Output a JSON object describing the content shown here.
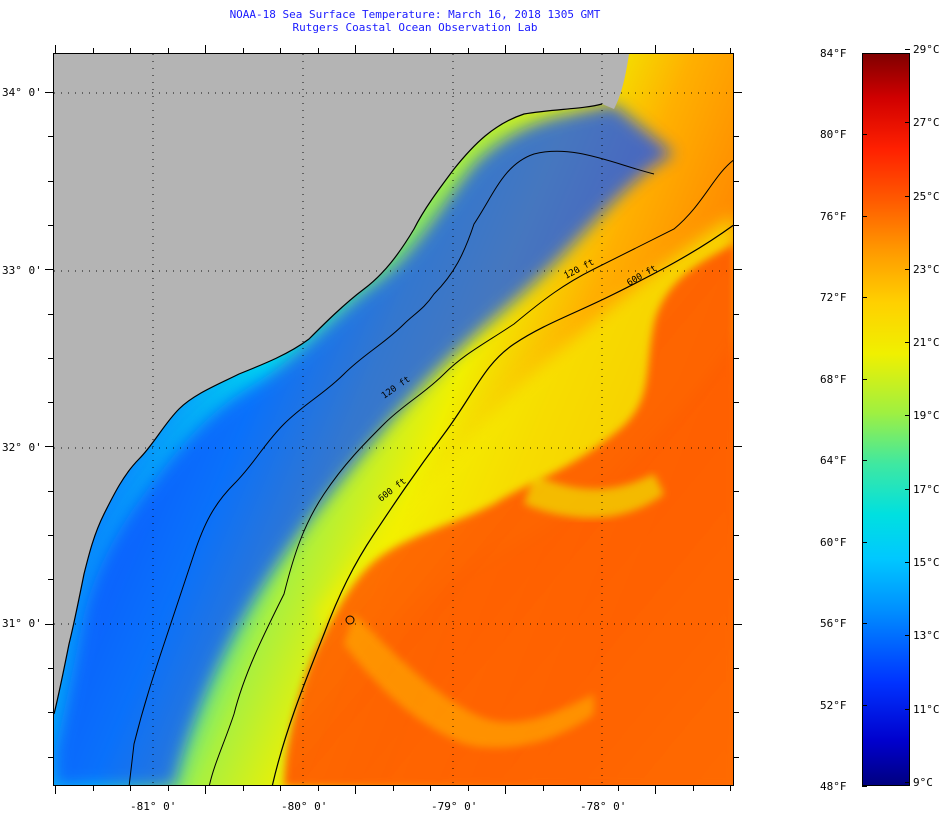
{
  "header": {
    "title": "NOAA-18 Sea Surface Temperature:  March 16, 2018 1305 GMT",
    "subtitle": "Rutgers Coastal Ocean Observation Lab"
  },
  "map": {
    "lat_labels": [
      "34° 0'",
      "33° 0'",
      "32° 0'",
      "31° 0'"
    ],
    "lon_labels": [
      "-81° 0'",
      "-80° 0'",
      "-79° 0'",
      "-78° 0'"
    ],
    "contour_labels": [
      "120 ft",
      "600 ft",
      "600 ft",
      "120 ft"
    ],
    "colors": {
      "land": "#b4b4b4",
      "cold": "#0a3cff",
      "mid": "#f0f000",
      "warm": "#ff6000"
    }
  },
  "colorbar": {
    "fahrenheit": [
      "84°F",
      "80°F",
      "76°F",
      "72°F",
      "68°F",
      "64°F",
      "60°F",
      "56°F",
      "52°F",
      "48°F"
    ],
    "celsius": [
      "29°C",
      "27°C",
      "25°C",
      "23°C",
      "21°C",
      "19°C",
      "17°C",
      "15°C",
      "13°C",
      "11°C",
      "9°C"
    ]
  }
}
